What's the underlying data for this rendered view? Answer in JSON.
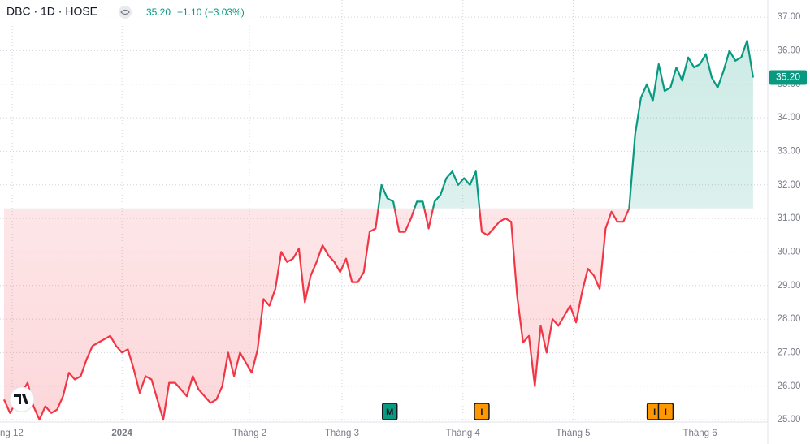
{
  "chart_data": {
    "type": "baseline",
    "symbol": "DBC · 1D · HOSE",
    "last_price": "35.20",
    "change": "−1.10 (−3.03%)",
    "baseline": 31.3,
    "up_color": "#089981",
    "down_color": "#f23645",
    "values": [
      25.6,
      25.2,
      25.5,
      25.8,
      26.1,
      25.4,
      25.0,
      25.4,
      25.2,
      25.3,
      25.7,
      26.4,
      26.2,
      26.3,
      26.8,
      27.2,
      27.3,
      27.4,
      27.5,
      27.2,
      27.0,
      27.1,
      26.5,
      25.8,
      26.3,
      26.2,
      25.6,
      25.0,
      26.1,
      26.1,
      25.9,
      25.7,
      26.3,
      25.9,
      25.7,
      25.5,
      25.6,
      26.0,
      27.0,
      26.3,
      27.0,
      26.7,
      26.4,
      27.1,
      28.6,
      28.4,
      28.9,
      30.0,
      29.7,
      29.8,
      30.1,
      28.5,
      29.3,
      29.7,
      30.2,
      29.9,
      29.7,
      29.4,
      29.8,
      29.1,
      29.1,
      29.4,
      30.6,
      30.7,
      32.0,
      31.6,
      31.5,
      30.6,
      30.6,
      31.0,
      31.5,
      31.5,
      30.7,
      31.5,
      31.7,
      32.2,
      32.4,
      32.0,
      32.2,
      32.0,
      32.4,
      30.6,
      30.5,
      30.7,
      30.9,
      31.0,
      30.9,
      28.7,
      27.3,
      27.5,
      26.0,
      27.8,
      27.0,
      28.0,
      27.8,
      28.1,
      28.4,
      27.9,
      28.8,
      29.5,
      29.3,
      28.9,
      30.7,
      31.2,
      30.9,
      30.9,
      31.3,
      33.5,
      34.6,
      35.0,
      34.5,
      35.6,
      34.8,
      34.9,
      35.5,
      35.1,
      35.8,
      35.5,
      35.6,
      35.9,
      35.2,
      34.9,
      35.4,
      36.0,
      35.7,
      35.8,
      36.3,
      35.2
    ],
    "ylim": [
      24.93,
      37.51
    ],
    "yticks": [
      {
        "value": 25,
        "label": "25.00"
      },
      {
        "value": 26,
        "label": "26.00"
      },
      {
        "value": 27,
        "label": "27.00"
      },
      {
        "value": 28,
        "label": "28.00"
      },
      {
        "value": 29,
        "label": "29.00"
      },
      {
        "value": 30,
        "label": "30.00"
      },
      {
        "value": 31,
        "label": "31.00"
      },
      {
        "value": 32,
        "label": "32.00"
      },
      {
        "value": 33,
        "label": "33.00"
      },
      {
        "value": 34,
        "label": "34.00"
      },
      {
        "value": 35,
        "label": "35.00"
      },
      {
        "value": 36,
        "label": "36.00"
      },
      {
        "value": 37,
        "label": "37.00"
      }
    ],
    "xlim": [
      -0.69,
      129.5
    ],
    "xticks": [
      {
        "value": 1.4,
        "label": "ng 12"
      },
      {
        "value": 20,
        "label": "2024"
      },
      {
        "value": 41.6,
        "label": "Tháng 2"
      },
      {
        "value": 57.3,
        "label": "Tháng 3"
      },
      {
        "value": 77.8,
        "label": "Tháng 4"
      },
      {
        "value": 96.5,
        "label": "Tháng 5"
      },
      {
        "value": 118,
        "label": "Tháng 6"
      }
    ],
    "events": [
      {
        "x": 65.4,
        "label": "M",
        "color": "#089981"
      },
      {
        "x": 81,
        "label": "I",
        "color": "#ff9800"
      },
      {
        "x": 110.3,
        "label": "I",
        "color": "#ff9800"
      },
      {
        "x": 112.2,
        "label": "I",
        "color": "#ff9800"
      }
    ],
    "grid": true
  }
}
